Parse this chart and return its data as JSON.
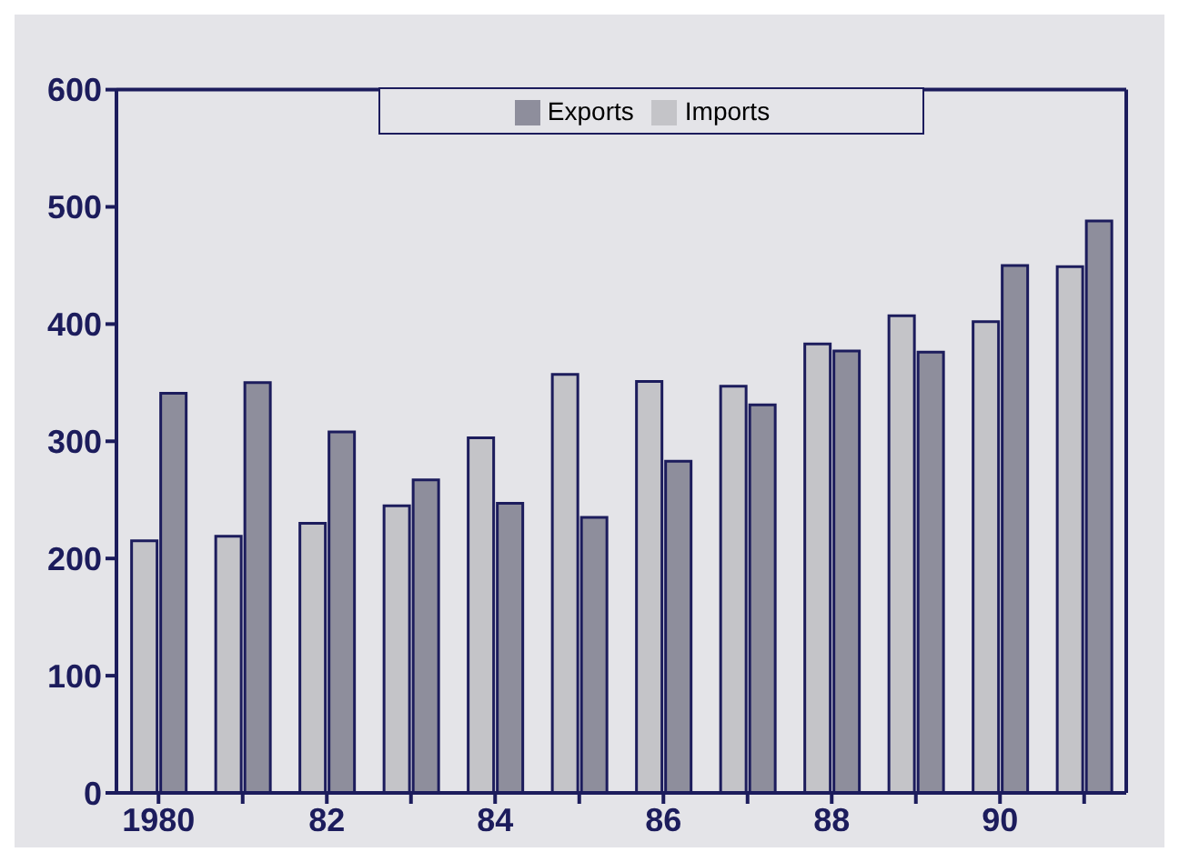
{
  "chart_data": {
    "type": "bar",
    "categories": [
      "1980",
      null,
      "82",
      null,
      "84",
      null,
      "86",
      null,
      "88",
      null,
      "90",
      null
    ],
    "series": [
      {
        "name": "Imports",
        "color": "#c4c4c8",
        "values": [
          215,
          219,
          230,
          245,
          303,
          357,
          351,
          347,
          383,
          407,
          402,
          449
        ]
      },
      {
        "name": "Exports",
        "color": "#8e8e9c",
        "values": [
          341,
          350,
          308,
          267,
          247,
          235,
          283,
          331,
          377,
          376,
          450,
          488
        ]
      }
    ],
    "ylim": [
      0,
      600
    ],
    "yticks": [
      0,
      100,
      200,
      300,
      400,
      500,
      600
    ],
    "grid": false,
    "legend": "top"
  }
}
